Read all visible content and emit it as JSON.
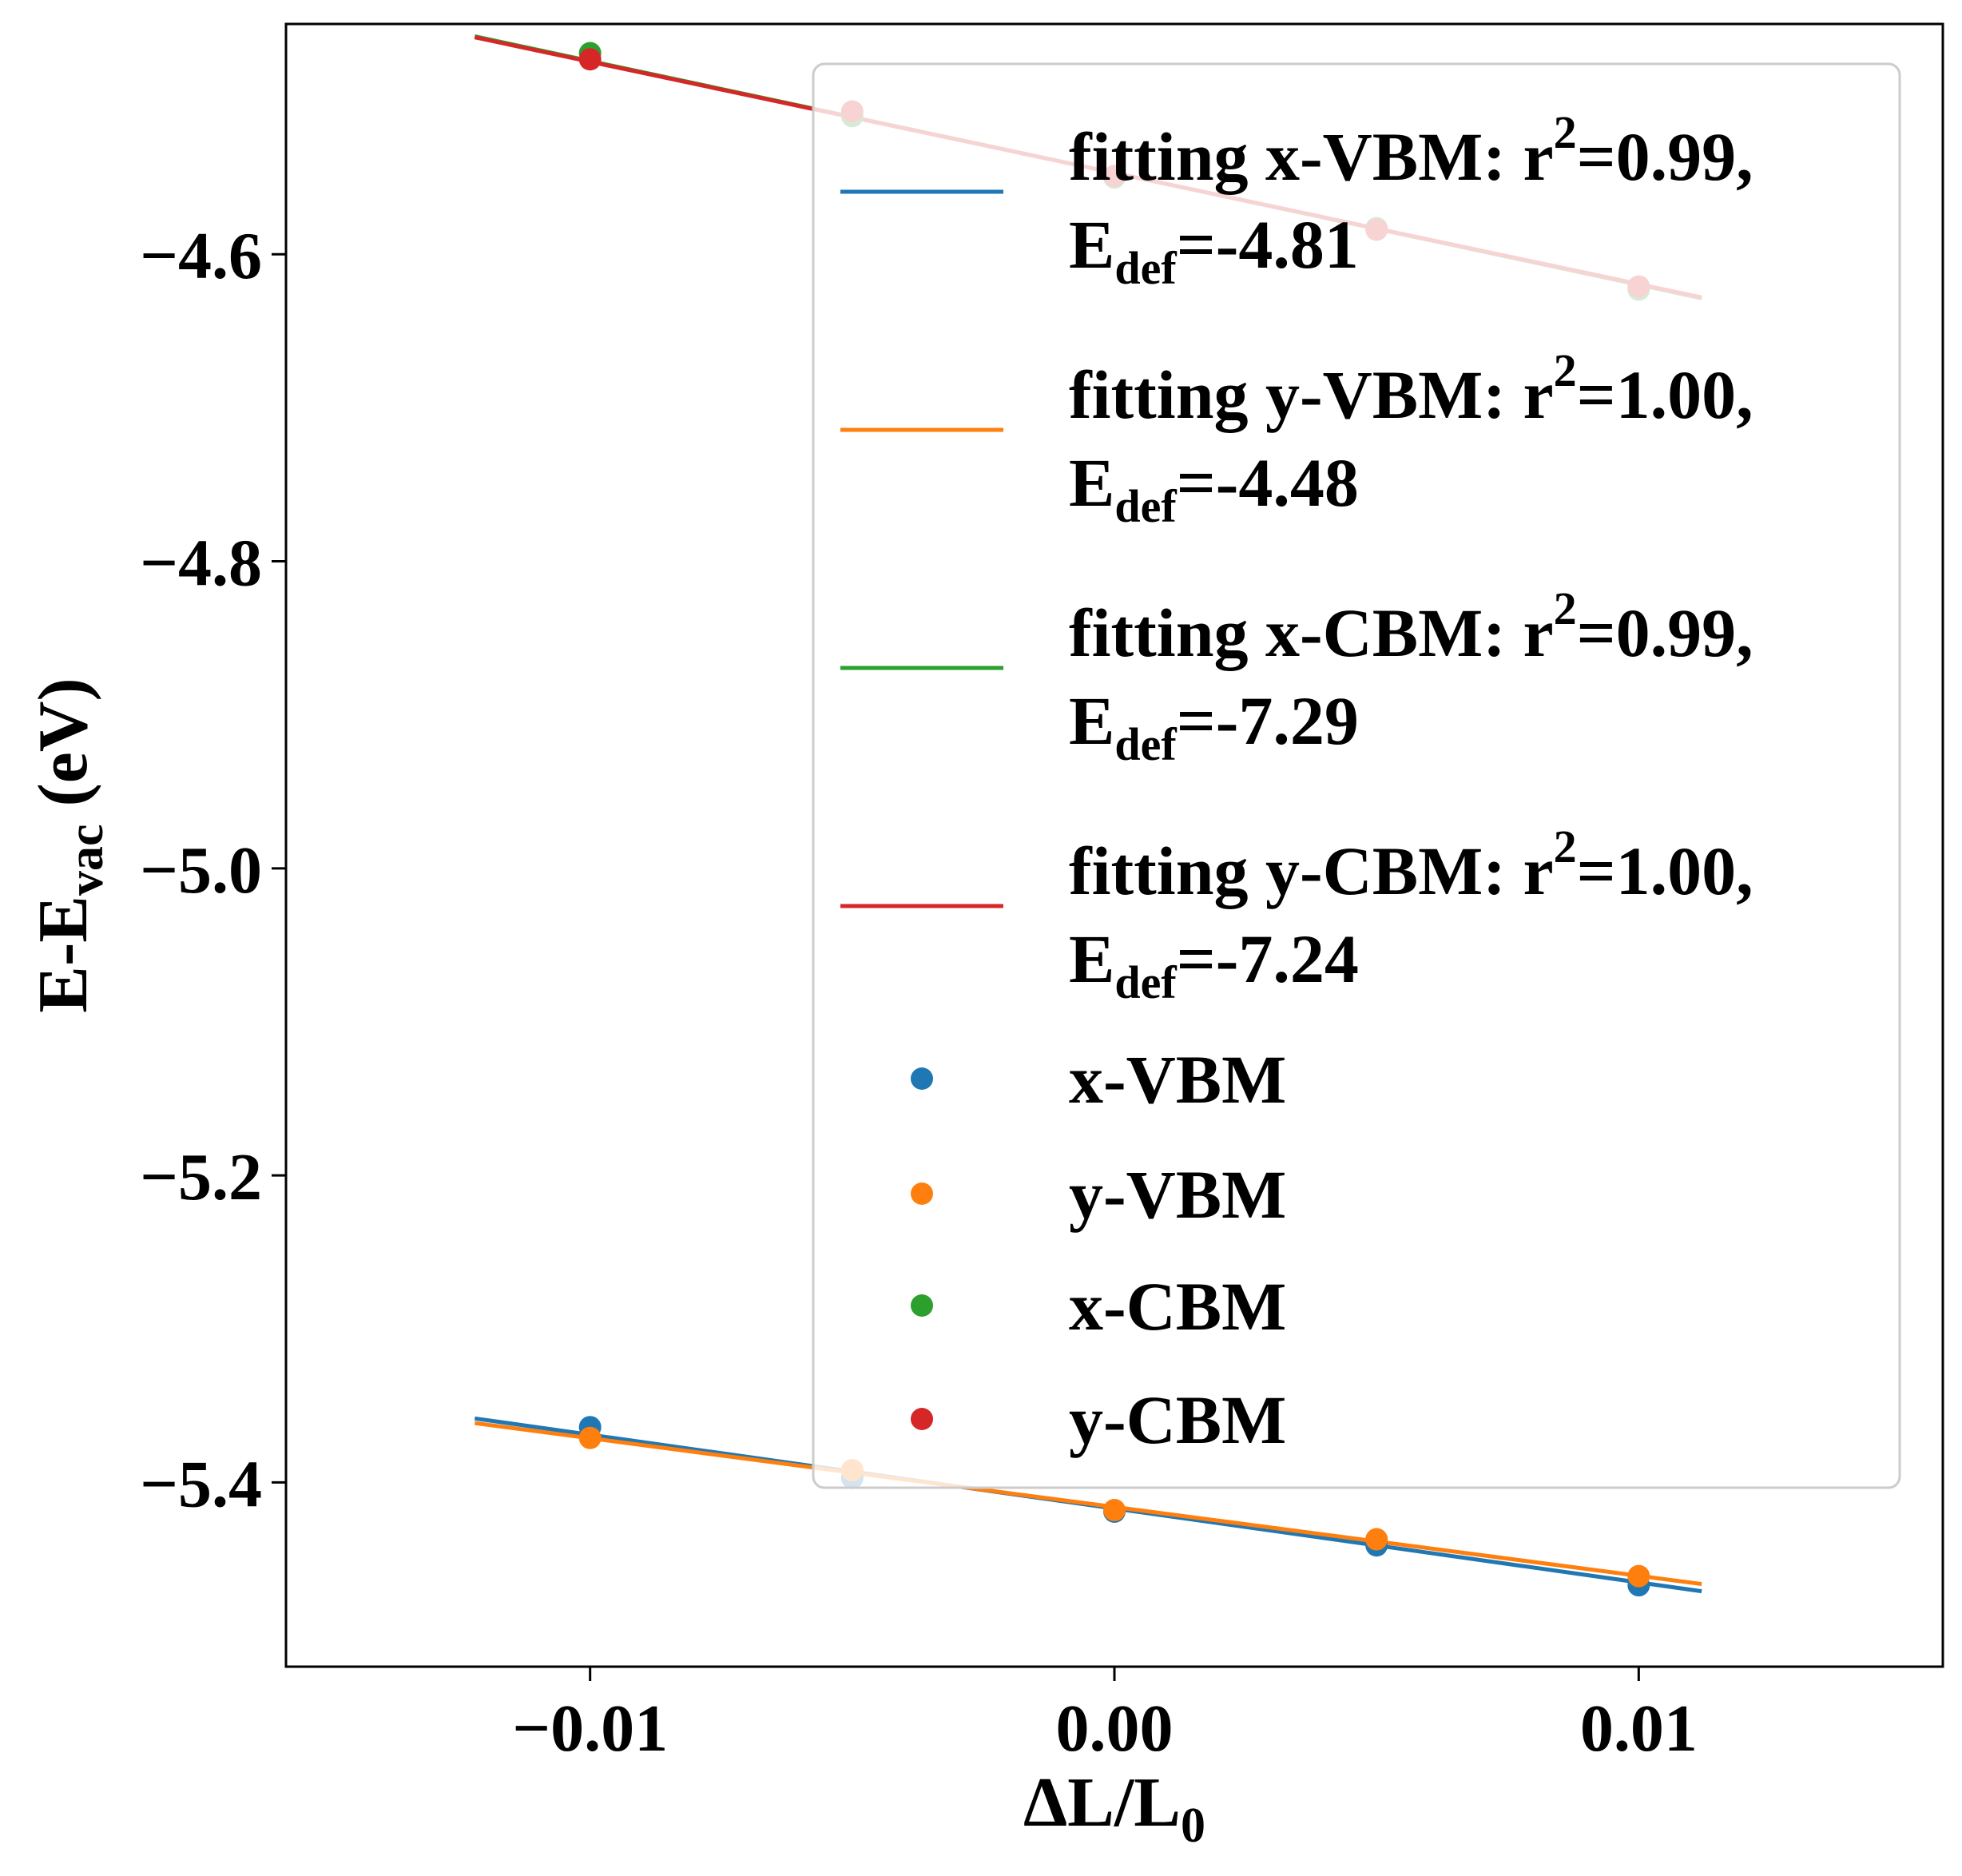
{
  "chart_data": {
    "type": "scatter",
    "xlabel": {
      "main": "ΔL/L",
      "sub": "0"
    },
    "ylabel": {
      "pre": "E-E",
      "sub": "vac",
      "post": " (eV)"
    },
    "xlim": [
      -0.0158,
      0.0158
    ],
    "ylim": [
      -5.52,
      -4.45
    ],
    "x_ticks": [
      {
        "value": -0.01,
        "label": "−0.01"
      },
      {
        "value": 0.0,
        "label": "0.00"
      },
      {
        "value": 0.01,
        "label": "0.01"
      }
    ],
    "y_ticks": [
      {
        "value": -4.6,
        "label": "−4.6"
      },
      {
        "value": -4.8,
        "label": "−4.8"
      },
      {
        "value": -5.0,
        "label": "−5.0"
      },
      {
        "value": -5.2,
        "label": "−5.2"
      },
      {
        "value": -5.4,
        "label": "−5.4"
      }
    ],
    "fit_x_range": [
      -0.0122,
      0.0112
    ],
    "legend_position": "upper-right",
    "series": [
      {
        "name": "x-VBM",
        "color": "#1f77b4",
        "points": [
          [
            -0.01,
            -5.364
          ],
          [
            -0.005,
            -5.397
          ],
          [
            0.0,
            -5.419
          ],
          [
            0.005,
            -5.441
          ],
          [
            0.01,
            -5.467
          ]
        ],
        "fit": {
          "slope": -4.81,
          "intercept": -5.417
        },
        "fit_label": {
          "line1": "fitting x-VBM: r",
          "sup": "2",
          "line1_end": "=0.99,",
          "line2_pre": "E",
          "line2_sub": "def",
          "line2_post": "=-4.81"
        }
      },
      {
        "name": "y-VBM",
        "color": "#ff7f0e",
        "points": [
          [
            -0.01,
            -5.371
          ],
          [
            -0.005,
            -5.392
          ],
          [
            0.0,
            -5.418
          ],
          [
            0.005,
            -5.437
          ],
          [
            0.01,
            -5.461
          ]
        ],
        "fit": {
          "slope": -4.48,
          "intercept": -5.416
        },
        "fit_label": {
          "line1": "fitting y-VBM: r",
          "sup": "2",
          "line1_end": "=1.00,",
          "line2_pre": "E",
          "line2_sub": "def",
          "line2_post": "=-4.48"
        }
      },
      {
        "name": "x-CBM",
        "color": "#2ca02c",
        "points": [
          [
            -0.01,
            -4.469
          ],
          [
            -0.005,
            -4.51
          ],
          [
            0.0,
            -4.55
          ],
          [
            0.005,
            -4.583
          ],
          [
            0.01,
            -4.623
          ]
        ],
        "fit": {
          "slope": -7.29,
          "intercept": -4.547
        },
        "fit_label": {
          "line1": "fitting x-CBM: r",
          "sup": "2",
          "line1_end": "=0.99,",
          "line2_pre": "E",
          "line2_sub": "def",
          "line2_post": "=-7.29"
        }
      },
      {
        "name": "y-CBM",
        "color": "#d62728",
        "points": [
          [
            -0.01,
            -4.473
          ],
          [
            -0.005,
            -4.507
          ],
          [
            0.0,
            -4.549
          ],
          [
            0.005,
            -4.584
          ],
          [
            0.01,
            -4.621
          ]
        ],
        "fit": {
          "slope": -7.24,
          "intercept": -4.547
        },
        "fit_label": {
          "line1": "fitting y-CBM: r",
          "sup": "2",
          "line1_end": "=1.00,",
          "line2_pre": "E",
          "line2_sub": "def",
          "line2_post": "=-7.24"
        }
      }
    ]
  }
}
